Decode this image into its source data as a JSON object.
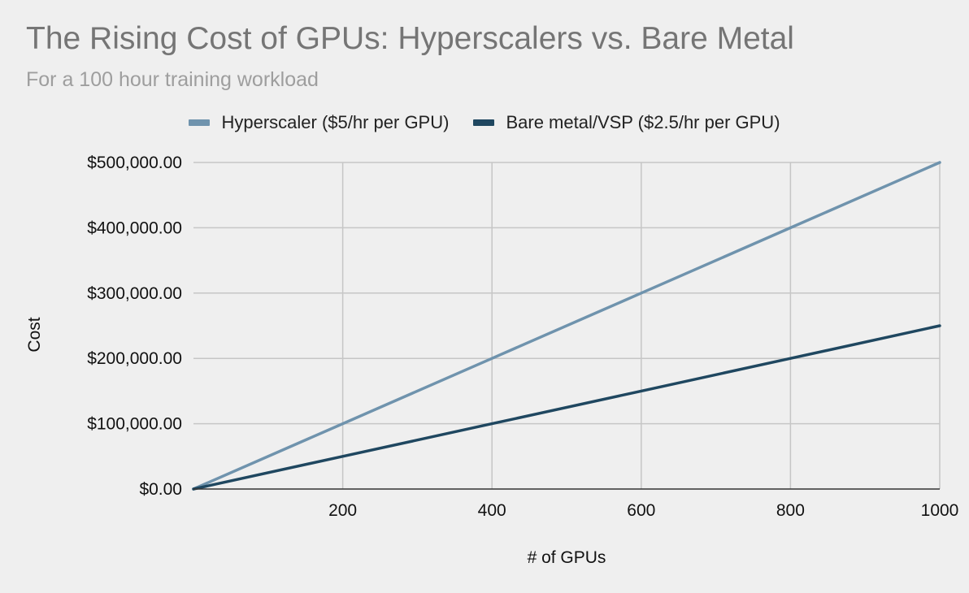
{
  "chart_data": {
    "type": "line",
    "title": "The Rising Cost of GPUs: Hyperscalers vs. Bare Metal",
    "subtitle": "For a 100 hour training workload",
    "xlabel": "# of GPUs",
    "ylabel": "Cost",
    "xlim": [
      0,
      1000
    ],
    "ylim": [
      0,
      500000
    ],
    "x_ticks": [
      200,
      400,
      600,
      800,
      1000
    ],
    "x_tick_labels": [
      "200",
      "400",
      "600",
      "800",
      "1000"
    ],
    "y_ticks": [
      0,
      100000,
      200000,
      300000,
      400000,
      500000
    ],
    "y_tick_labels": [
      "$0.00",
      "$100,000.00",
      "$200,000.00",
      "$300,000.00",
      "$400,000.00",
      "$500,000.00"
    ],
    "grid": true,
    "legend_position": "top",
    "series": [
      {
        "name": "Hyperscaler ($5/hr per GPU)",
        "color": "#6f93ad",
        "x": [
          0,
          200,
          400,
          600,
          800,
          1000
        ],
        "values": [
          0,
          100000,
          200000,
          300000,
          400000,
          500000
        ]
      },
      {
        "name": "Bare metal/VSP ($2.5/hr per GPU)",
        "color": "#1f4760",
        "x": [
          0,
          200,
          400,
          600,
          800,
          1000
        ],
        "values": [
          0,
          50000,
          100000,
          150000,
          200000,
          250000
        ]
      }
    ]
  }
}
